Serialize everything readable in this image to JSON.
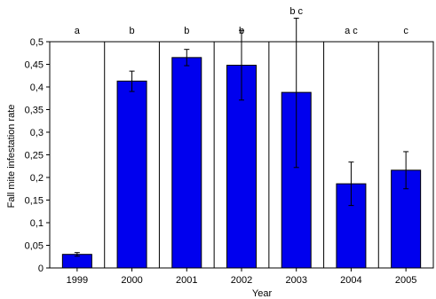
{
  "chart_data": {
    "type": "bar",
    "categories": [
      "1999",
      "2000",
      "2001",
      "2002",
      "2003",
      "2004",
      "2005"
    ],
    "values": [
      0.03,
      0.413,
      0.465,
      0.448,
      0.388,
      0.186,
      0.216
    ],
    "error_low": [
      0.026,
      0.39,
      0.447,
      0.371,
      0.222,
      0.138,
      0.175
    ],
    "error_high": [
      0.034,
      0.435,
      0.483,
      0.525,
      0.552,
      0.234,
      0.257
    ],
    "significance": [
      "a",
      "b",
      "b",
      "b",
      "b c",
      "a c",
      "c"
    ],
    "xlabel": "Year",
    "ylabel": "Fall mite infestation rate",
    "ylim": [
      0,
      0.5
    ],
    "yticks": [
      "0",
      "0,05",
      "0,1",
      "0,15",
      "0,2",
      "0,25",
      "0,3",
      "0,35",
      "0,4",
      "0,45",
      "0,5"
    ],
    "ytick_values": [
      0,
      0.05,
      0.1,
      0.15,
      0.2,
      0.25,
      0.3,
      0.35,
      0.4,
      0.45,
      0.5
    ],
    "grid": "vertical category dividers",
    "bar_color": "#0000ee"
  }
}
